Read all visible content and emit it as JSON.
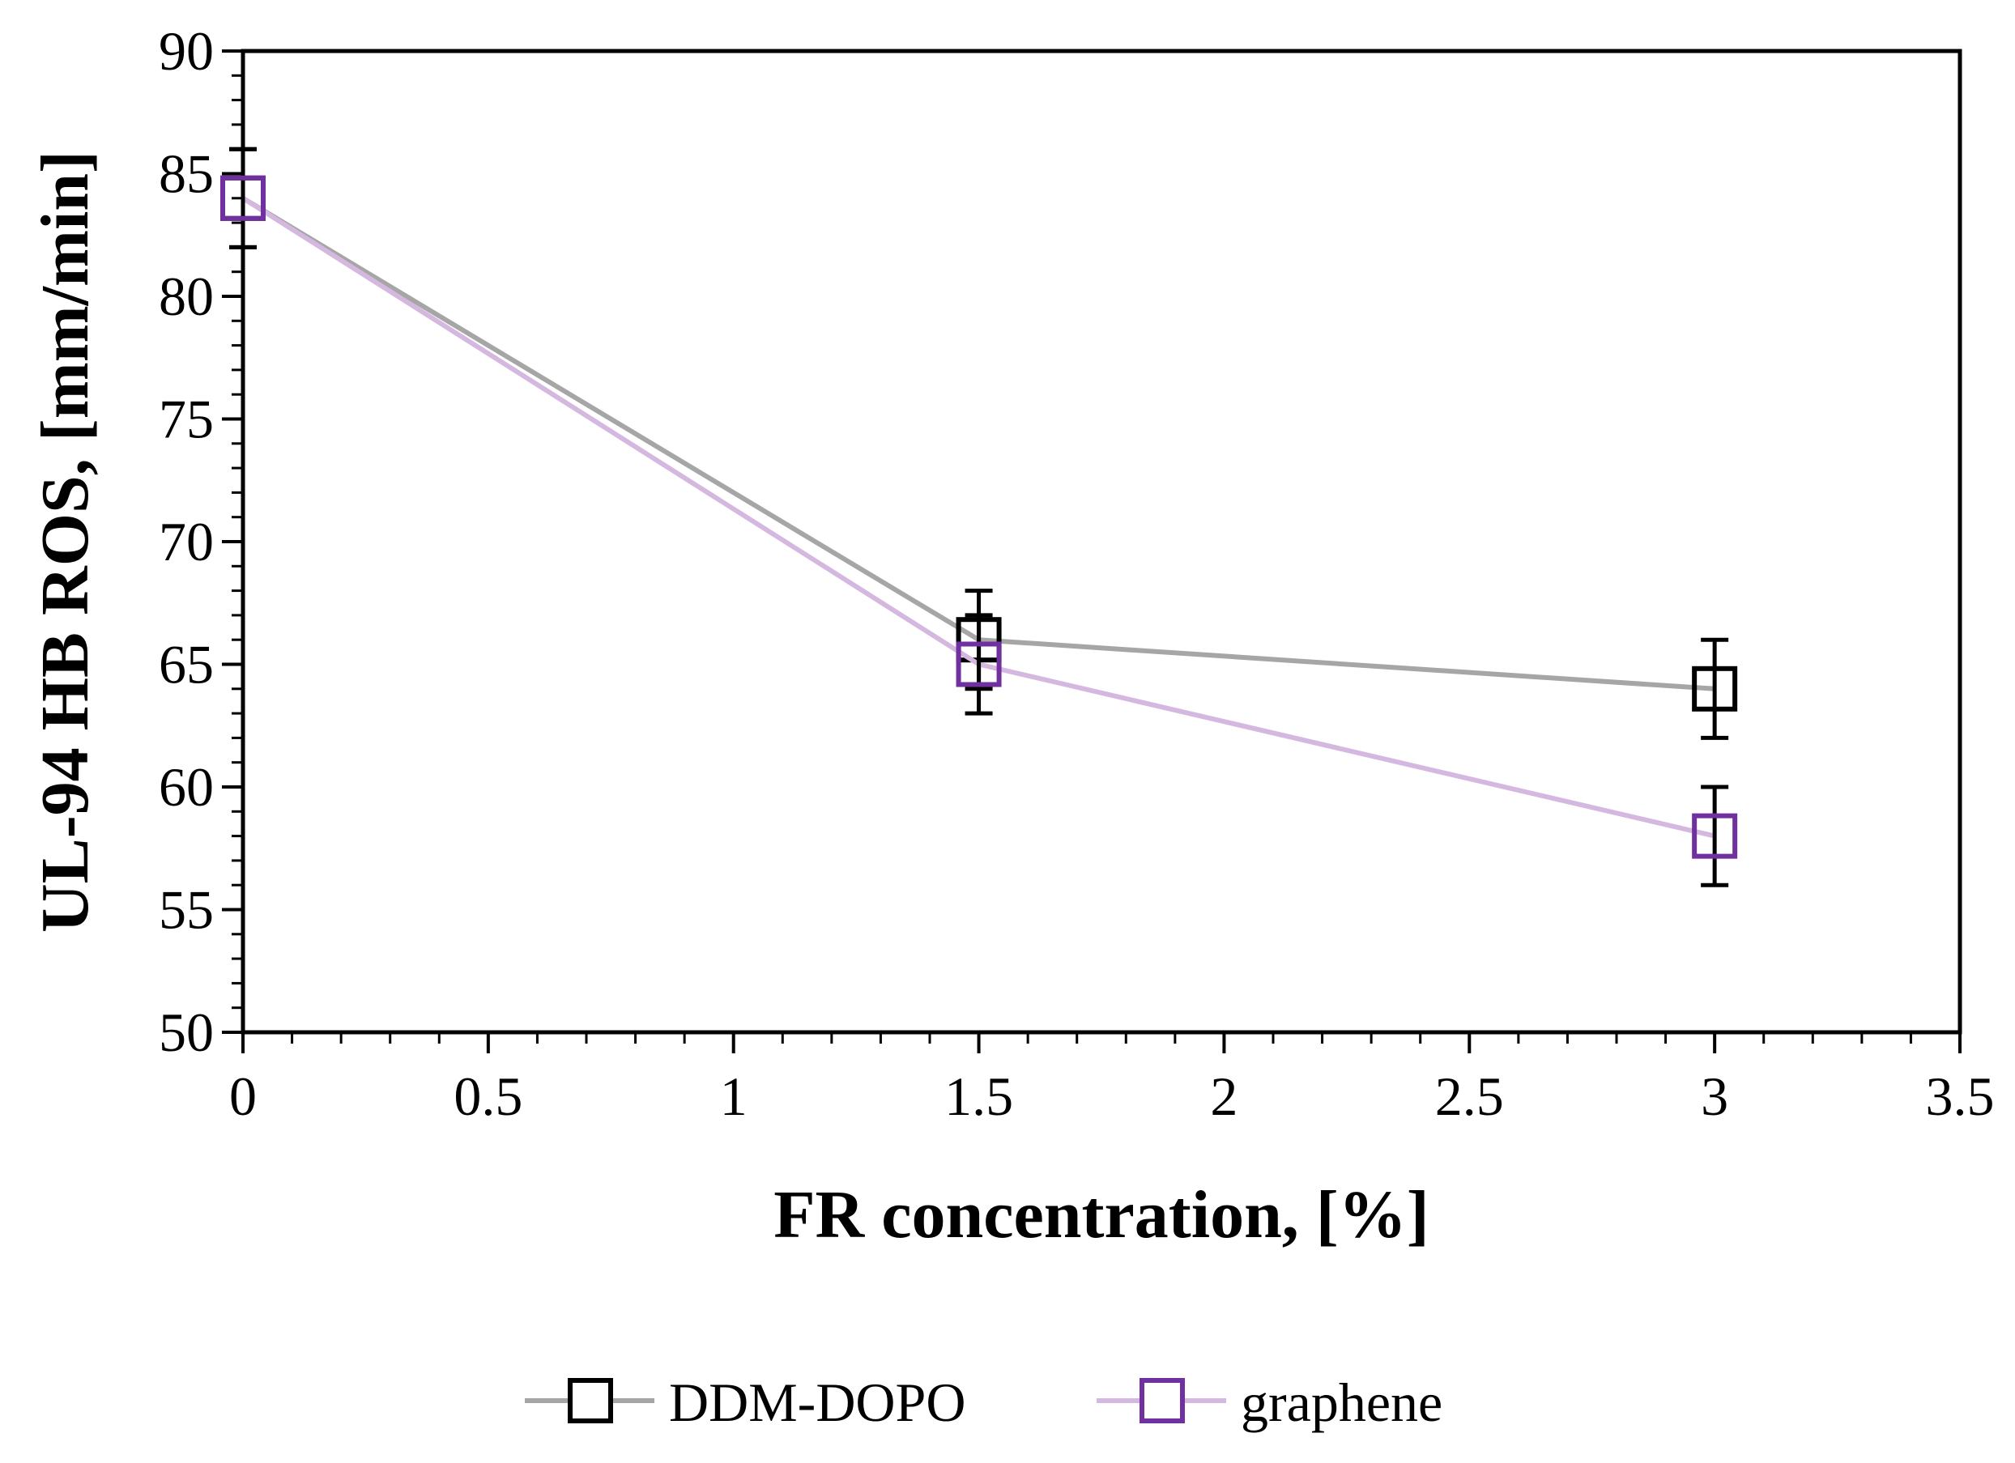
{
  "chart_data": {
    "type": "line",
    "title": "",
    "xlabel": "FR concentration, [%]",
    "ylabel": "UL-94 HB ROS, [mm/min]",
    "xlim": [
      0,
      3.5
    ],
    "ylim": [
      50,
      90
    ],
    "x_ticks": [
      0,
      0.5,
      1,
      1.5,
      2,
      2.5,
      3,
      3.5
    ],
    "x_tick_labels": [
      "0",
      "0.5",
      "1",
      "1.5",
      "2",
      "2.5",
      "3",
      "3.5"
    ],
    "y_ticks": [
      50,
      55,
      60,
      65,
      70,
      75,
      80,
      85,
      90
    ],
    "y_tick_labels": [
      "50",
      "55",
      "60",
      "65",
      "70",
      "75",
      "80",
      "85",
      "90"
    ],
    "grid": false,
    "legend_position": "bottom-center",
    "series": [
      {
        "name": "DDM-DOPO",
        "x": [
          0,
          1.5,
          3
        ],
        "values": [
          84,
          66,
          64
        ],
        "errors": [
          2,
          2,
          2
        ],
        "line_color": "#a6a6a6",
        "marker_color": "#000000",
        "marker": "open-square"
      },
      {
        "name": "graphene",
        "x": [
          0,
          1.5,
          3
        ],
        "values": [
          84,
          65,
          58
        ],
        "errors": [
          2,
          2,
          2
        ],
        "line_color": "#d5b8e0",
        "marker_color": "#7030a0",
        "marker": "open-square"
      }
    ]
  }
}
